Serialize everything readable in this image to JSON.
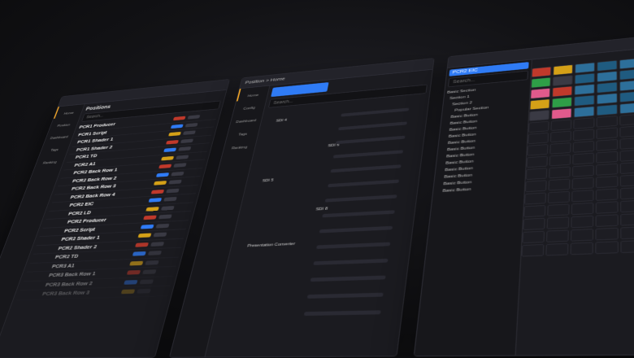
{
  "panel1": {
    "title": "Positions",
    "search": "Search...",
    "nav": [
      "Home",
      "Position",
      "Dashboard",
      "Tags",
      "Ranking"
    ],
    "rows": [
      "PCR1 Producer",
      "PCR1 Script",
      "PCR1 Shader 1",
      "PCR1 Shader 2",
      "PCR1 TD",
      "PCR2 A1",
      "PCR2 Back Row 1",
      "PCR2 Back Row 2",
      "PCR2 Back Row 3",
      "PCR2 Back Row 4",
      "PCR2 EIC",
      "PCR2 LD",
      "PCR2 Producer",
      "PCR2 Script",
      "PCR2 Shader 1",
      "PCR2 Shader 2",
      "PCR2 TD",
      "PCR3 A1",
      "PCR3 Back Row 1",
      "PCR3 Back Row 2",
      "PCR3 Back Row 3"
    ]
  },
  "panel2": {
    "breadcrumb": "Position > Home",
    "search": "Search...",
    "nav": [
      "Home",
      "Config",
      "Dashboard",
      "Tags",
      "Ranking"
    ],
    "items": [
      "SDI 4",
      "SDI 6",
      "SDI 5",
      "SDI 8",
      "Presentation Converter"
    ]
  },
  "panel3": {
    "title": "PCR2 EIC",
    "search": "Search...",
    "tree": [
      "Basic Section",
      "Section 1",
      "Section 2",
      "Popular Section",
      "Basic Button",
      "Basic Button",
      "Basic Button",
      "Basic Button",
      "Basic Button",
      "Basic Button",
      "Basic Button",
      "Basic Button",
      "Basic Button",
      "Basic Button",
      "Basic Button",
      "Basic Button"
    ]
  }
}
